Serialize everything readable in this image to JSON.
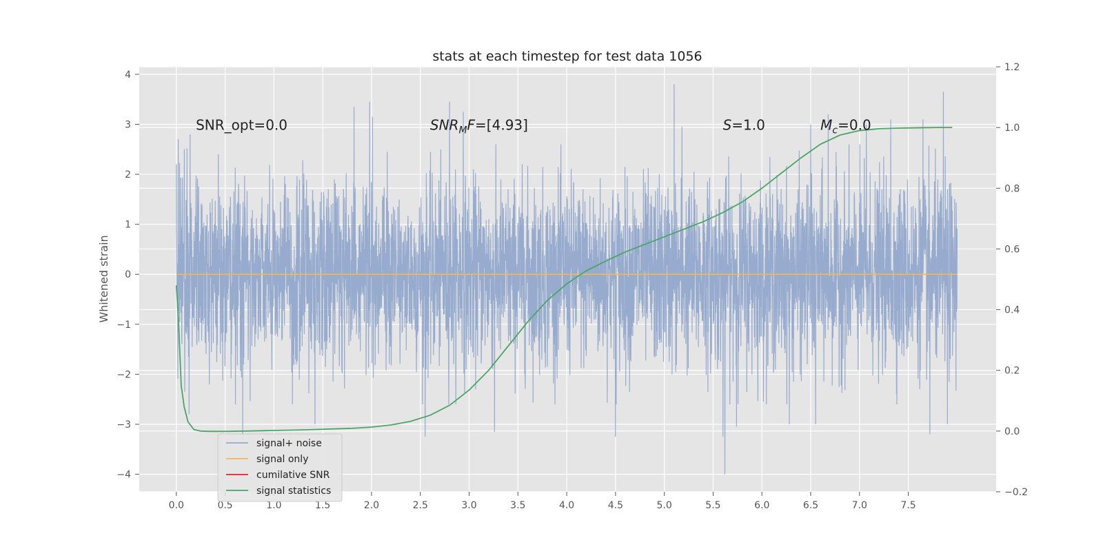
{
  "chart_data": {
    "type": "line",
    "title": "stats at each timestep for test data 1056",
    "ylabel": "Whitened strain",
    "xlim": [
      -0.38,
      8.4
    ],
    "ylim": [
      -4.35,
      4.15
    ],
    "y2lim": [
      -0.2,
      1.2
    ],
    "grid": true,
    "xticks": [
      "0.0",
      "0.5",
      "1.0",
      "1.5",
      "2.0",
      "2.5",
      "3.0",
      "3.5",
      "4.0",
      "4.5",
      "5.0",
      "5.5",
      "6.0",
      "6.5",
      "7.0",
      "7.5"
    ],
    "yticks": [
      "4",
      "3",
      "2",
      "1",
      "0",
      "−1",
      "−2",
      "−3",
      "−4"
    ],
    "y2ticks": [
      "1.2",
      "1.0",
      "0.8",
      "0.6",
      "0.4",
      "0.2",
      "0.0",
      "−0.2"
    ],
    "annotations": [
      {
        "x": 0.2,
        "y": 3.0,
        "parts": [
          {
            "t": "SNR_opt=0.0",
            "i": false
          }
        ]
      },
      {
        "x": 2.6,
        "y": 3.0,
        "parts": [
          {
            "t": "SNR",
            "i": true
          },
          {
            "t": "M",
            "i": true,
            "sub": true
          },
          {
            "t": "F",
            "i": true
          },
          {
            "t": "=[4.93]",
            "i": false
          }
        ]
      },
      {
        "x": 5.6,
        "y": 3.0,
        "parts": [
          {
            "t": "S",
            "i": true
          },
          {
            "t": "=1.0",
            "i": false
          }
        ]
      },
      {
        "x": 6.6,
        "y": 3.0,
        "parts": [
          {
            "t": "M",
            "i": true
          },
          {
            "t": "c",
            "i": true,
            "sub": true
          },
          {
            "t": "=0.0",
            "i": false
          }
        ]
      }
    ],
    "legend": {
      "placement": "lower-left",
      "entries": [
        {
          "label": "signal+ noise",
          "color": "#92a8cc"
        },
        {
          "label": "signal only",
          "color": "#f0b856"
        },
        {
          "label": "cumilative SNR",
          "color": "#d62728"
        },
        {
          "label": "signal statistics",
          "color": "#4aa564"
        }
      ]
    },
    "series": [
      {
        "name": "signal+ noise",
        "axis": "left",
        "color": "#92a8cc",
        "x_range": [
          0.0,
          8.0
        ],
        "samples": 4096,
        "typical_range": [
          -1.5,
          1.5
        ],
        "peaks_max": [
          [
            0.0,
            2.2
          ],
          [
            0.02,
            2.7
          ],
          [
            0.14,
            2.8
          ],
          [
            0.43,
            2.4
          ],
          [
            1.82,
            3.35
          ],
          [
            1.98,
            3.45
          ],
          [
            2.01,
            3.15
          ],
          [
            2.8,
            3.45
          ],
          [
            2.94,
            3.25
          ],
          [
            5.1,
            3.8
          ],
          [
            5.18,
            2.95
          ],
          [
            5.74,
            3.0
          ],
          [
            6.28,
            3.15
          ],
          [
            6.5,
            3.0
          ],
          [
            6.68,
            3.2
          ],
          [
            7.07,
            3.0
          ],
          [
            7.32,
            3.1
          ],
          [
            7.65,
            3.1
          ],
          [
            7.86,
            3.65
          ]
        ],
        "peaks_min": [
          [
            0.13,
            -2.8
          ],
          [
            0.68,
            -3.35
          ],
          [
            1.42,
            -3.0
          ],
          [
            2.55,
            -3.25
          ],
          [
            3.26,
            -3.15
          ],
          [
            4.5,
            -3.25
          ],
          [
            5.6,
            -3.25
          ],
          [
            5.62,
            -4.0
          ],
          [
            5.74,
            -3.05
          ],
          [
            6.28,
            -3.0
          ],
          [
            6.55,
            -3.0
          ],
          [
            7.72,
            -3.2
          ],
          [
            7.9,
            -3.0
          ]
        ]
      },
      {
        "name": "signal only",
        "axis": "left",
        "color": "#f0b856",
        "x": [
          0.0,
          8.0
        ],
        "y": [
          0.0,
          0.0
        ]
      },
      {
        "name": "cumilative SNR",
        "axis": "left",
        "color": "#d62728",
        "x": [],
        "y": []
      },
      {
        "name": "signal statistics",
        "axis": "right",
        "color": "#4aa564",
        "x": [
          0.0,
          0.02,
          0.05,
          0.08,
          0.12,
          0.18,
          0.25,
          0.35,
          0.5,
          0.7,
          1.0,
          1.3,
          1.6,
          1.8,
          2.0,
          2.2,
          2.4,
          2.6,
          2.8,
          3.0,
          3.2,
          3.4,
          3.6,
          3.8,
          4.0,
          4.2,
          4.4,
          4.6,
          4.8,
          5.0,
          5.2,
          5.4,
          5.6,
          5.8,
          6.0,
          6.2,
          6.4,
          6.6,
          6.8,
          7.0,
          7.2,
          7.4,
          7.6,
          7.8,
          7.95
        ],
        "y": [
          0.48,
          0.38,
          0.15,
          0.08,
          0.03,
          0.005,
          0.0,
          -0.001,
          -0.001,
          0.0,
          0.002,
          0.004,
          0.007,
          0.009,
          0.013,
          0.02,
          0.032,
          0.052,
          0.085,
          0.135,
          0.2,
          0.28,
          0.36,
          0.43,
          0.485,
          0.528,
          0.56,
          0.59,
          0.615,
          0.64,
          0.665,
          0.69,
          0.72,
          0.755,
          0.8,
          0.85,
          0.9,
          0.945,
          0.975,
          0.99,
          0.996,
          0.998,
          0.999,
          1.0,
          1.0
        ]
      }
    ]
  }
}
